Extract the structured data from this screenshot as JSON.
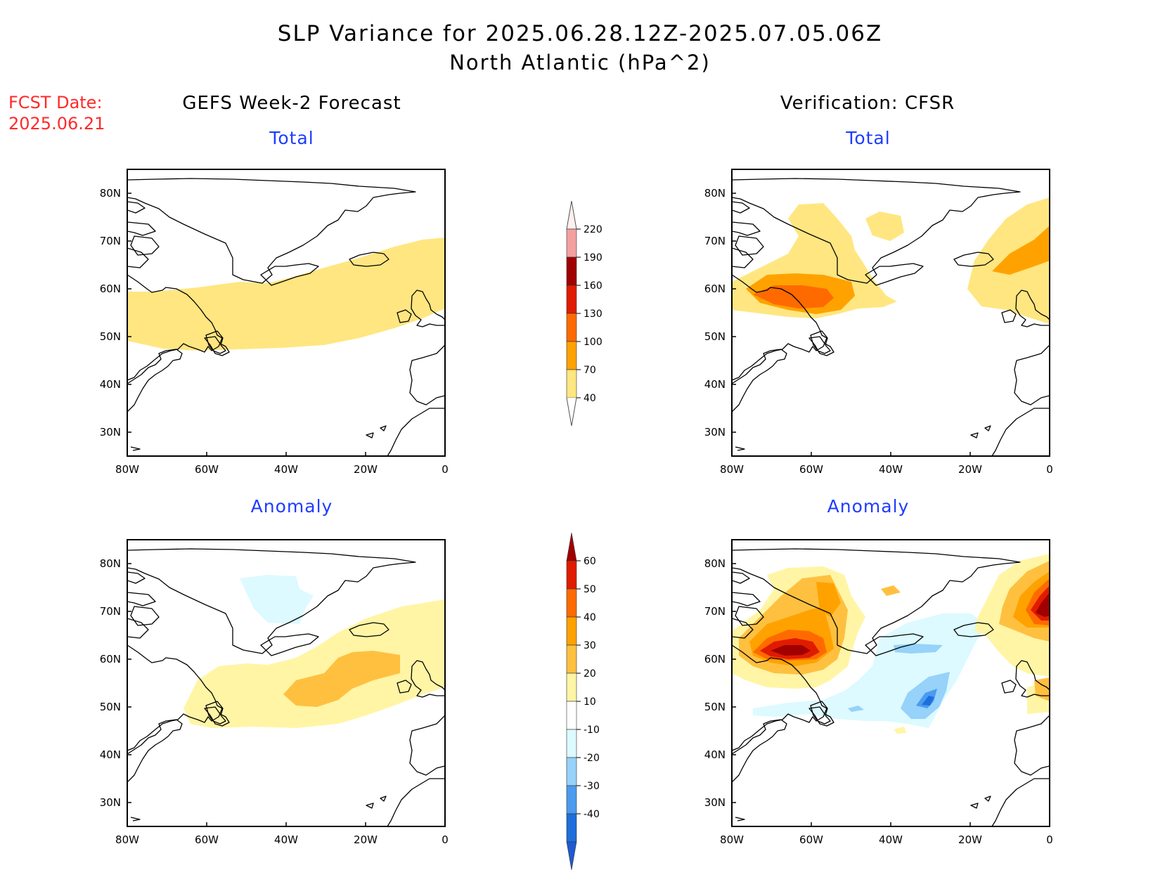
{
  "header": {
    "title_line1": "SLP Variance for 2025.06.28.12Z-2025.07.05.06Z",
    "title_line2": "North Atlantic (hPa^2)",
    "fcst_line1": "FCST Date:",
    "fcst_line2": "2025.06.21"
  },
  "columns": {
    "left": "GEFS Week-2 Forecast",
    "right": "Verification: CFSR"
  },
  "panels": {
    "forecast_total": "Total",
    "forecast_anomaly": "Anomaly",
    "verification_total": "Total",
    "verification_anomaly": "Anomaly"
  },
  "axes": {
    "lat_labels": [
      "80N",
      "70N",
      "60N",
      "50N",
      "40N",
      "30N"
    ],
    "lon_labels": [
      "80W",
      "60W",
      "40W",
      "20W",
      "0"
    ],
    "lat_range": [
      25,
      85
    ],
    "lon_range": [
      -80,
      0
    ]
  },
  "colorbars": {
    "total": {
      "labels": [
        "220",
        "190",
        "160",
        "130",
        "100",
        "70",
        "40"
      ],
      "colors": [
        "#fff0f0",
        "#f4a0a0",
        "#a00000",
        "#e01b00",
        "#ff6a00",
        "#ffa200",
        "#ffe680"
      ]
    },
    "anomaly": {
      "labels": [
        "60",
        "50",
        "40",
        "30",
        "20",
        "10",
        "-10",
        "-20",
        "-30",
        "-40"
      ],
      "colors": [
        "#a00000",
        "#e01b00",
        "#ff6a00",
        "#ffa200",
        "#ffc040",
        "#fff5a5",
        "#ffffff",
        "#dcfaff",
        "#96d2fa",
        "#4b9bf0",
        "#1e6edc",
        "#1e5ad2"
      ]
    }
  },
  "levels": {
    "total": [
      {
        "label": "40-70",
        "color": "#ffe680"
      },
      {
        "label": "70-100",
        "color": "#ffa200"
      },
      {
        "label": "100-130",
        "color": "#ff6a00"
      }
    ],
    "anomaly_pos": [
      {
        "label": "10-20",
        "color": "#fff5a5"
      },
      {
        "label": "20-30",
        "color": "#ffc040"
      },
      {
        "label": "30-40",
        "color": "#ffa200"
      },
      {
        "label": "40-50",
        "color": "#ff6a00"
      },
      {
        "label": "50-60",
        "color": "#e01b00"
      },
      {
        "label": ">60",
        "color": "#a00000"
      }
    ],
    "anomaly_neg": [
      {
        "label": "-10 to -20",
        "color": "#dcfaff"
      },
      {
        "label": "-20 to -30",
        "color": "#96d2fa"
      },
      {
        "label": "-30 to -40",
        "color": "#4b9bf0"
      },
      {
        "label": "<-40",
        "color": "#1e6edc"
      }
    ]
  }
}
